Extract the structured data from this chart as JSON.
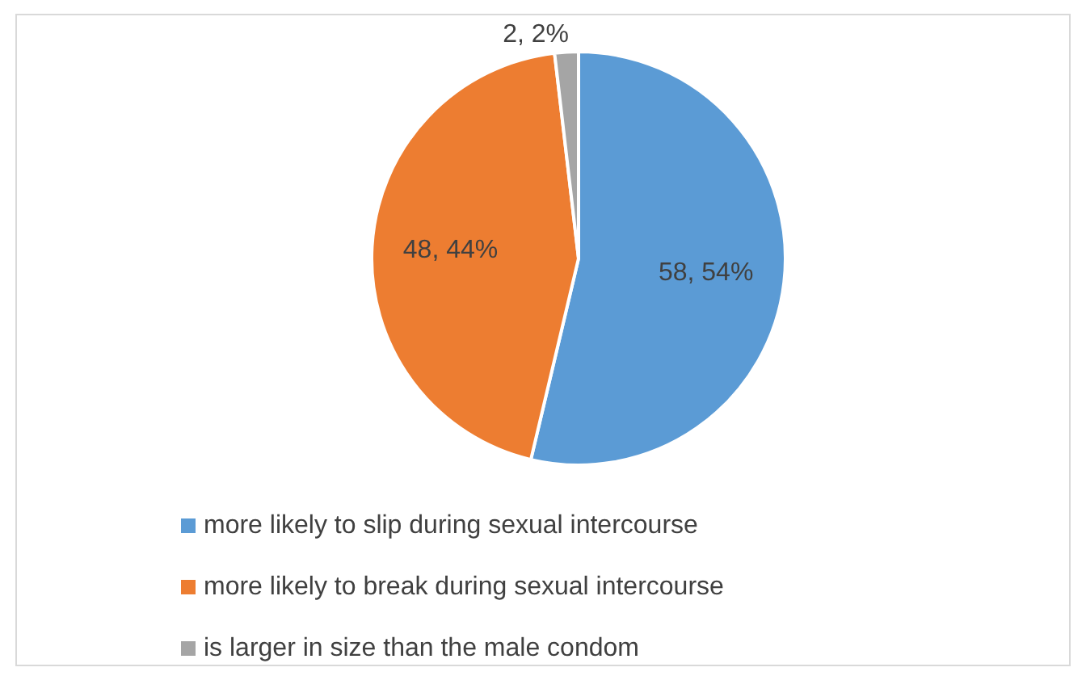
{
  "chart_data": {
    "type": "pie",
    "categories": [
      "more likely to slip during sexual intercourse",
      "more likely to break during sexual intercourse",
      "is larger in size than the male condom"
    ],
    "values": [
      58,
      48,
      2
    ],
    "colors": [
      "#5b9bd5",
      "#ed7d31",
      "#a5a5a5"
    ],
    "value_labels": [
      "58, 54%",
      "48, 44%",
      "2, 2%"
    ],
    "legend": "bottom"
  }
}
